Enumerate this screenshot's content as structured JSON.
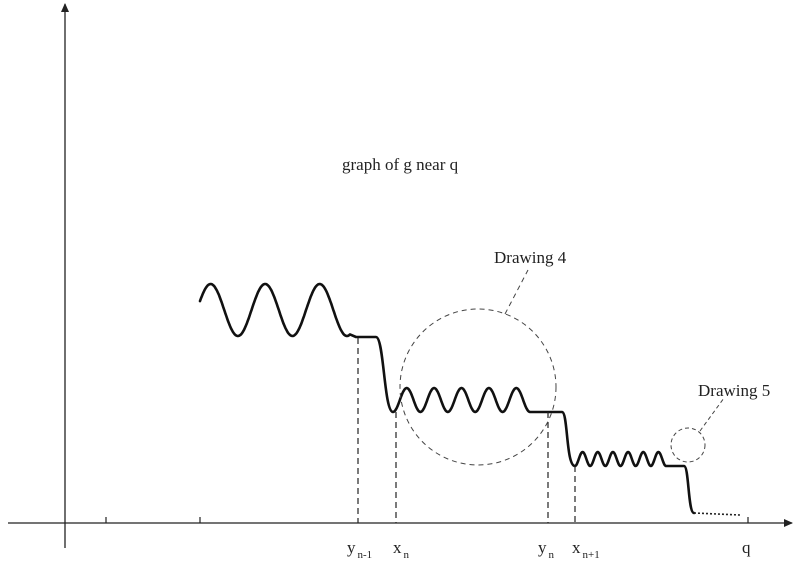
{
  "diagram": {
    "caption": "graph of g near q",
    "callouts": [
      {
        "text": "Drawing 4"
      },
      {
        "text": "Drawing 5"
      }
    ],
    "axis_labels": [
      {
        "base": "y",
        "sub": "n-1"
      },
      {
        "base": "x",
        "sub": "n"
      },
      {
        "base": "y",
        "sub": "n"
      },
      {
        "base": "x",
        "sub": "n+1"
      },
      {
        "base": "q",
        "sub": ""
      }
    ]
  },
  "colors": {
    "ink": "#222222",
    "background": "#ffffff"
  }
}
